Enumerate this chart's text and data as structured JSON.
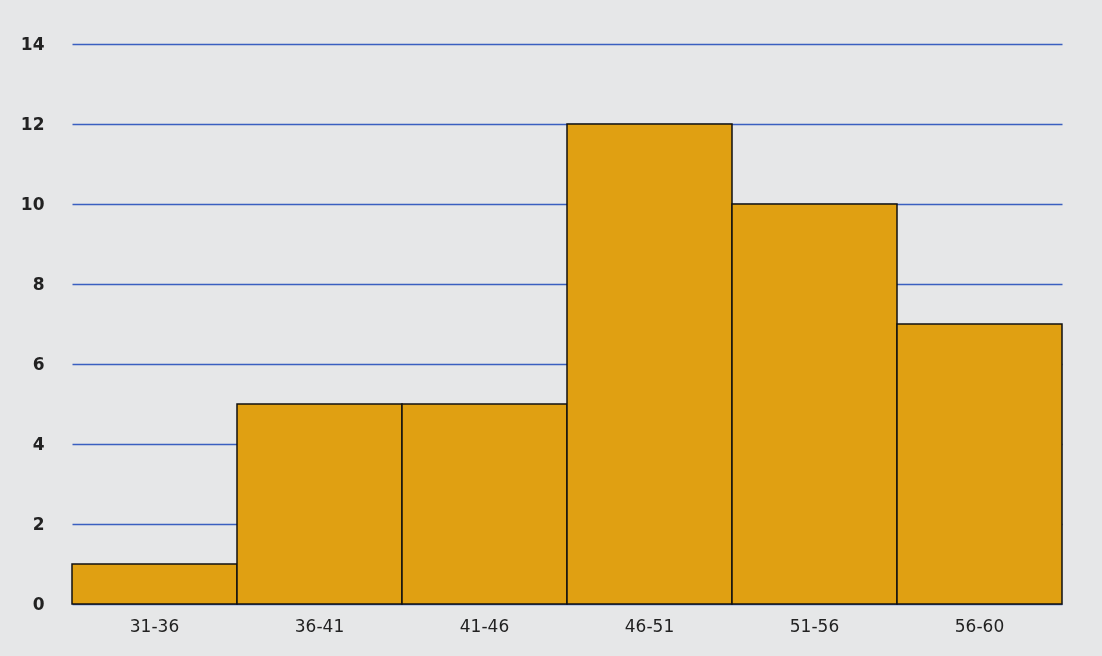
{
  "chart_data": {
    "type": "bar",
    "categories": [
      "31-36",
      "36-41",
      "41-46",
      "46-51",
      "51-56",
      "56-60"
    ],
    "values": [
      1,
      5,
      5,
      12,
      10,
      7
    ],
    "color": "#e0a012",
    "ylim": [
      0,
      14
    ],
    "yticks": [
      0,
      2,
      4,
      6,
      8,
      10,
      12,
      14
    ],
    "grid": "y"
  }
}
